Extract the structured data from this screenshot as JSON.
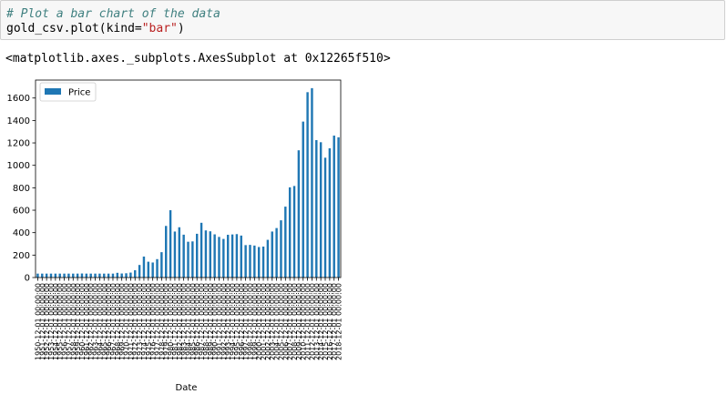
{
  "cell": {
    "comment": "# Plot a bar chart of the data",
    "code_object": "gold_csv",
    "code_method": ".plot(kind=",
    "code_arg": "\"bar\"",
    "code_close": ")"
  },
  "output": {
    "repr": "<matplotlib.axes._subplots.AxesSubplot at 0x12265f510>"
  },
  "colors": {
    "bar": "#1f77b4"
  },
  "chart_data": {
    "type": "bar",
    "xlabel": "Date",
    "ylabel": "",
    "legend": [
      "Price"
    ],
    "legend_position": "top-left",
    "ylim": [
      0,
      1760
    ],
    "yticks": [
      0,
      200,
      400,
      600,
      800,
      1000,
      1200,
      1400,
      1600
    ],
    "categories": [
      "1950-12-01 00:00:00",
      "1951-12-01 00:00:00",
      "1952-12-01 00:00:00",
      "1953-12-01 00:00:00",
      "1954-12-01 00:00:00",
      "1955-12-01 00:00:00",
      "1956-12-01 00:00:00",
      "1957-12-01 00:00:00",
      "1958-12-01 00:00:00",
      "1959-12-01 00:00:00",
      "1960-12-01 00:00:00",
      "1961-12-01 00:00:00",
      "1962-12-01 00:00:00",
      "1963-12-01 00:00:00",
      "1964-12-01 00:00:00",
      "1965-12-01 00:00:00",
      "1966-12-01 00:00:00",
      "1967-12-01 00:00:00",
      "1968-12-01 00:00:00",
      "1969-12-01 00:00:00",
      "1970-12-01 00:00:00",
      "1971-12-01 00:00:00",
      "1972-12-01 00:00:00",
      "1973-12-01 00:00:00",
      "1974-12-01 00:00:00",
      "1975-12-01 00:00:00",
      "1976-12-01 00:00:00",
      "1977-12-01 00:00:00",
      "1978-12-01 00:00:00",
      "1979-12-01 00:00:00",
      "1980-12-01 00:00:00",
      "1981-12-01 00:00:00",
      "1982-12-01 00:00:00",
      "1983-12-01 00:00:00",
      "1984-12-01 00:00:00",
      "1985-12-01 00:00:00",
      "1986-12-01 00:00:00",
      "1987-12-01 00:00:00",
      "1988-12-01 00:00:00",
      "1989-12-01 00:00:00",
      "1990-12-01 00:00:00",
      "1991-12-01 00:00:00",
      "1992-12-01 00:00:00",
      "1993-12-01 00:00:00",
      "1994-12-01 00:00:00",
      "1995-12-01 00:00:00",
      "1996-12-01 00:00:00",
      "1997-12-01 00:00:00",
      "1998-12-01 00:00:00",
      "1999-12-01 00:00:00",
      "2000-12-01 00:00:00",
      "2001-12-01 00:00:00",
      "2002-12-01 00:00:00",
      "2003-12-01 00:00:00",
      "2004-12-01 00:00:00",
      "2005-12-01 00:00:00",
      "2006-12-01 00:00:00",
      "2007-12-01 00:00:00",
      "2008-12-01 00:00:00",
      "2009-12-01 00:00:00",
      "2010-12-01 00:00:00",
      "2011-12-01 00:00:00",
      "2012-12-01 00:00:00",
      "2013-12-01 00:00:00",
      "2014-12-01 00:00:00",
      "2015-12-01 00:00:00",
      "2016-12-01 00:00:00",
      "2017-12-01 00:00:00",
      "2018-12-01 00:00:00"
    ],
    "series": [
      {
        "name": "Price",
        "values": [
          35,
          35,
          35,
          35,
          35,
          35,
          35,
          35,
          35,
          35,
          36,
          35,
          35,
          35,
          35,
          35,
          35,
          35,
          42,
          36,
          38,
          44,
          65,
          112,
          187,
          141,
          134,
          164,
          226,
          460,
          600,
          410,
          448,
          382,
          319,
          322,
          390,
          488,
          420,
          412,
          385,
          362,
          344,
          381,
          384,
          387,
          374,
          289,
          291,
          285,
          272,
          276,
          336,
          410,
          441,
          510,
          632,
          804,
          816,
          1134,
          1390,
          1652,
          1688,
          1225,
          1206,
          1068,
          1152,
          1265,
          1250
        ]
      }
    ]
  }
}
